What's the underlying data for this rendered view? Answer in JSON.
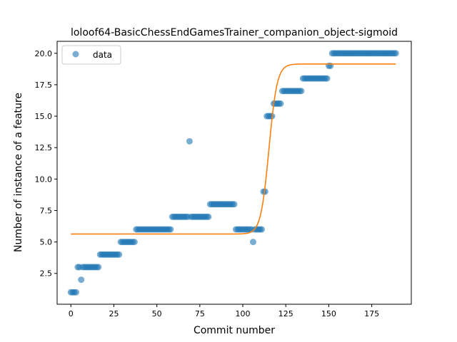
{
  "chart_data": {
    "type": "scatter",
    "title": "loloof64-BasicChessEndGamesTrainer_companion_object-sigmoid",
    "xlabel": "Commit number",
    "ylabel": "Number of instance of a feature",
    "xlim": [
      -8,
      198
    ],
    "ylim": [
      0.05,
      20.95
    ],
    "xticks": [
      0,
      25,
      50,
      75,
      100,
      125,
      150,
      175
    ],
    "yticks": [
      2.5,
      5.0,
      7.5,
      10.0,
      12.5,
      15.0,
      17.5,
      20.0
    ],
    "ytick_labels": [
      "2.5",
      "5.0",
      "7.5",
      "10.0",
      "12.5",
      "15.0",
      "17.5",
      "20.0"
    ],
    "grid": false,
    "legend": {
      "position": "upper-left",
      "entries": [
        "data"
      ]
    },
    "colors": {
      "data": "#1f77b4",
      "fit": "#ff7f0e"
    },
    "series": [
      {
        "name": "data",
        "kind": "scatter",
        "segments": [
          {
            "from": 0,
            "to": 3,
            "y": 1
          },
          {
            "from": 4,
            "to": 5,
            "y": 3
          },
          {
            "from": 6,
            "to": 6,
            "y": 2
          },
          {
            "from": 7,
            "to": 16,
            "y": 3
          },
          {
            "from": 17,
            "to": 28,
            "y": 4
          },
          {
            "from": 29,
            "to": 37,
            "y": 5
          },
          {
            "from": 38,
            "to": 58,
            "y": 6
          },
          {
            "from": 59,
            "to": 68,
            "y": 7
          },
          {
            "from": 69,
            "to": 69,
            "y": 13
          },
          {
            "from": 70,
            "to": 80,
            "y": 7
          },
          {
            "from": 81,
            "to": 95,
            "y": 8
          },
          {
            "from": 96,
            "to": 105,
            "y": 6
          },
          {
            "from": 106,
            "to": 106,
            "y": 5
          },
          {
            "from": 107,
            "to": 111,
            "y": 6
          },
          {
            "from": 112,
            "to": 113,
            "y": 9
          },
          {
            "from": 114,
            "to": 117,
            "y": 15
          },
          {
            "from": 118,
            "to": 122,
            "y": 16
          },
          {
            "from": 123,
            "to": 134,
            "y": 17
          },
          {
            "from": 135,
            "to": 149,
            "y": 18
          },
          {
            "from": 150,
            "to": 151,
            "y": 19
          },
          {
            "from": 152,
            "to": 189,
            "y": 20
          }
        ]
      },
      {
        "name": "fit",
        "kind": "line",
        "model": "sigmoid",
        "params": {
          "low": 5.63,
          "high": 19.15,
          "x0": 115.2,
          "k": 0.42
        },
        "x_range": [
          0,
          189
        ]
      }
    ]
  }
}
